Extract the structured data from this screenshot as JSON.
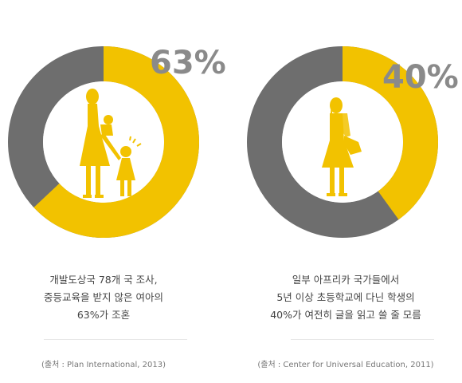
{
  "colors": {
    "accent": "#f2c200",
    "ring_gray": "#6e6e6e",
    "percent_text": "#8a8a8a"
  },
  "chart_data": [
    {
      "type": "pie",
      "value": 63,
      "percent_label": "63%",
      "description_lines": [
        "개발도상국 78개 국 조사,",
        "중등교육을 받지 않은 여아의",
        "63%가 조혼"
      ],
      "source": "(출처 : Plan International, 2013)",
      "icon": "mother-with-children-icon"
    },
    {
      "type": "pie",
      "value": 40,
      "percent_label": "40%",
      "description_lines": [
        "일부 아프리카 국가들에서",
        "5년 이상 초등학교에 다닌 학생의",
        "40%가 여전히 글을 읽고 쓸 줄 모름"
      ],
      "source": "(출처 : Center for Universal Education, 2011)",
      "icon": "schoolgirl-with-book-icon"
    }
  ]
}
